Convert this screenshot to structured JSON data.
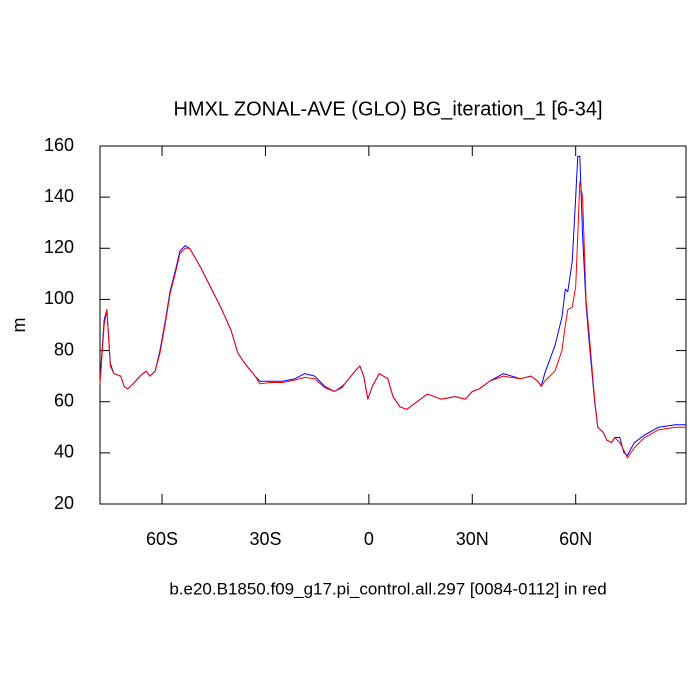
{
  "chart_data": {
    "type": "line",
    "title": "HMXL ZONAL-AVE (GLO) BG_iteration_1 [6-34]",
    "y_label": "m",
    "x_label": "b.e20.B1850.f09_g17.pi_control.all.297 [0084-0112] in red",
    "x": [
      -78,
      -76.8,
      -76,
      -75,
      -74,
      -72,
      -71,
      -70,
      -68.4,
      -66.4,
      -64.6,
      -63.5,
      -62,
      -60.6,
      -59,
      -57.7,
      -56,
      -54.8,
      -53.3,
      -52,
      -49,
      -46,
      -43,
      -40,
      -38,
      -36,
      -33,
      -31.6,
      -28.7,
      -25,
      -21.4,
      -18.6,
      -15.7,
      -12.8,
      -10,
      -7.8,
      -7,
      -4,
      -2.6,
      -1.5,
      -0.3,
      1,
      3,
      5.5,
      7,
      9,
      11,
      15,
      17,
      21,
      25,
      28,
      30,
      32,
      35,
      39,
      44,
      47,
      49,
      50,
      51,
      54,
      56,
      57,
      57.7,
      59,
      60,
      60.6,
      61.2,
      62,
      63,
      64,
      65.5,
      66.4,
      68,
      69,
      70.4,
      71.3,
      72.8,
      74,
      75,
      77,
      80,
      84,
      89,
      92
    ],
    "series": [
      {
        "color": "#0000ff",
        "values": [
          68,
          92,
          96,
          75,
          71,
          70,
          66,
          65,
          67,
          70,
          72,
          70,
          72,
          80,
          92,
          103,
          112,
          119,
          121,
          120,
          113,
          105,
          97,
          88,
          79,
          75,
          70,
          68,
          68,
          68,
          69,
          71,
          70,
          66,
          64,
          66,
          67,
          72,
          74,
          70,
          61,
          66,
          71,
          69,
          62,
          58,
          57,
          61,
          63,
          61,
          62,
          61,
          64,
          65,
          68,
          71,
          69,
          70,
          68,
          66,
          71,
          82,
          93,
          104,
          103,
          115,
          140,
          156,
          156,
          125,
          98,
          82,
          60,
          50,
          48,
          45,
          44,
          46,
          46,
          40,
          39,
          44,
          47,
          50,
          51,
          51
        ]
      },
      {
        "color": "#ff0000",
        "values": [
          67,
          90,
          96,
          74,
          71,
          70,
          66,
          65,
          67,
          70,
          72,
          70,
          72,
          79,
          91,
          102,
          111,
          118,
          120,
          120,
          113,
          105,
          97,
          88,
          79,
          75,
          70,
          67,
          67.5,
          67.5,
          68.5,
          69.5,
          69,
          65.5,
          64,
          65.5,
          67,
          72,
          74,
          70,
          61,
          66,
          71,
          69,
          62,
          58,
          57,
          61,
          63,
          61,
          62,
          61,
          64,
          65,
          68,
          70,
          69,
          70,
          68,
          66,
          68,
          72,
          80,
          90,
          96,
          97,
          105,
          125,
          146,
          140,
          100,
          85,
          61,
          50,
          48,
          45,
          44,
          46,
          44,
          41,
          38,
          42,
          46,
          49,
          50,
          50
        ]
      }
    ],
    "xlim": [
      -78,
      92
    ],
    "xticks": [
      {
        "value": -60,
        "label": "60S"
      },
      {
        "value": -30,
        "label": "30S"
      },
      0,
      {
        "value": 30,
        "label": "30N"
      },
      {
        "value": 60,
        "label": "60N"
      }
    ],
    "ylim": [
      20,
      160
    ],
    "yticks": [
      20,
      40,
      60,
      80,
      100,
      120,
      140,
      160
    ]
  }
}
